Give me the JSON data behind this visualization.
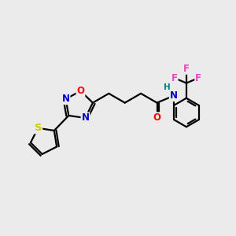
{
  "bg_color": "#ebebeb",
  "bond_width": 1.6,
  "atom_colors": {
    "O": "#ff0000",
    "N": "#0000cc",
    "S": "#cccc00",
    "F": "#ee44cc",
    "H": "#008080",
    "C": "#000000"
  },
  "font_size": 8.5,
  "fig_size": [
    3.0,
    3.0
  ],
  "dpi": 100
}
